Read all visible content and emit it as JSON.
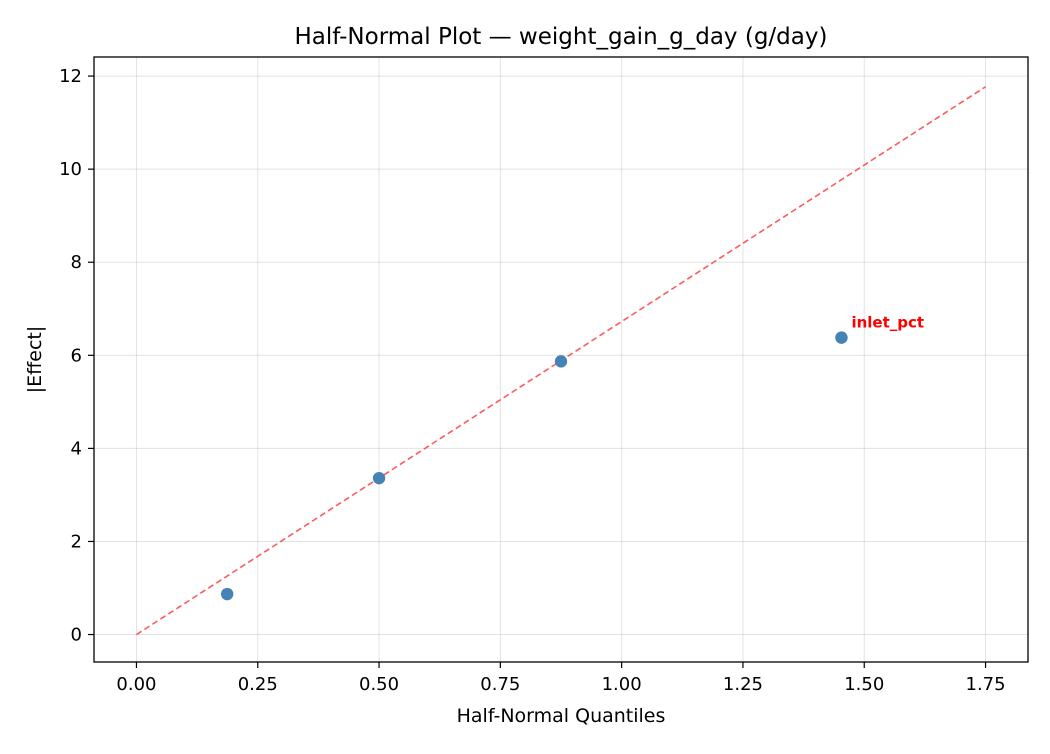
{
  "chart_data": {
    "type": "scatter",
    "title": "Half-Normal Plot — weight_gain_g_day (g/day)",
    "xlabel": "Half-Normal Quantiles",
    "ylabel": "|Effect|",
    "xlim": [
      -0.0875,
      1.8375
    ],
    "ylim": [
      -0.59,
      12.41
    ],
    "xticks": [
      0.0,
      0.25,
      0.5,
      0.75,
      1.0,
      1.25,
      1.5,
      1.75
    ],
    "xtick_labels": [
      "0.00",
      "0.25",
      "0.50",
      "0.75",
      "1.00",
      "1.25",
      "1.50",
      "1.75"
    ],
    "yticks": [
      0,
      2,
      4,
      6,
      8,
      10,
      12
    ],
    "ytick_labels": [
      "0",
      "2",
      "4",
      "6",
      "8",
      "10",
      "12"
    ],
    "grid": true,
    "points": [
      {
        "x": 0.187,
        "y": 0.87
      },
      {
        "x": 0.5,
        "y": 3.36
      },
      {
        "x": 0.875,
        "y": 5.87
      },
      {
        "x": 1.453,
        "y": 6.38,
        "label": "inlet_pct"
      }
    ],
    "reference_line": {
      "x": [
        0.0,
        1.75
      ],
      "y": [
        0.0,
        11.77
      ]
    },
    "colors": {
      "points": "#4682b4",
      "reference_line": "#ff5a5a",
      "annotation": "#ff0000"
    }
  }
}
